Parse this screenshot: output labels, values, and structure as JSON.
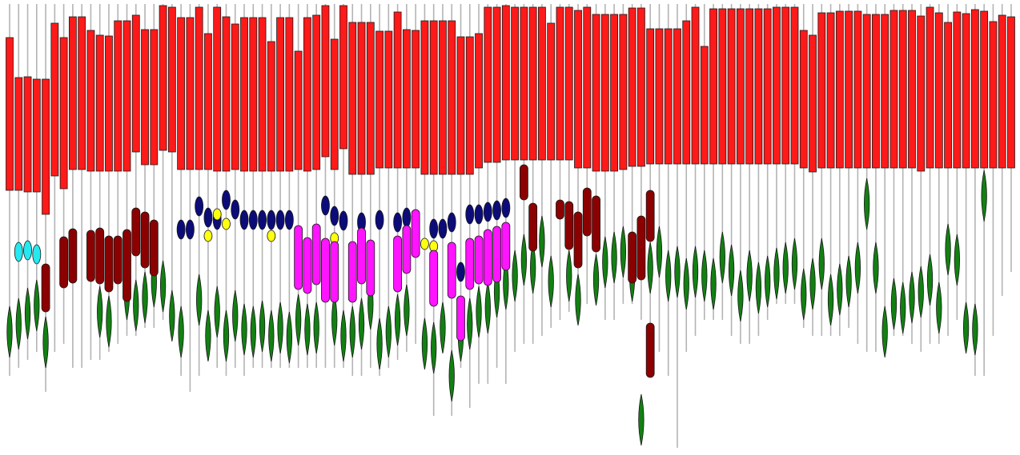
{
  "palette": {
    "red": "#ff1a1a",
    "maroon": "#8b0000",
    "green": "#128012",
    "cyan": "#25e8f0",
    "navy": "#0c0c78",
    "yellow": "#ffff10",
    "magenta": "#ff14ff",
    "stem": "#b4b4b4"
  },
  "glyph_types": {
    "red": "rect",
    "maroon": "pill",
    "green": "diamond",
    "cyan": "oval",
    "navy": "oval",
    "yellow": "oval",
    "magenta": "pill"
  }
}
